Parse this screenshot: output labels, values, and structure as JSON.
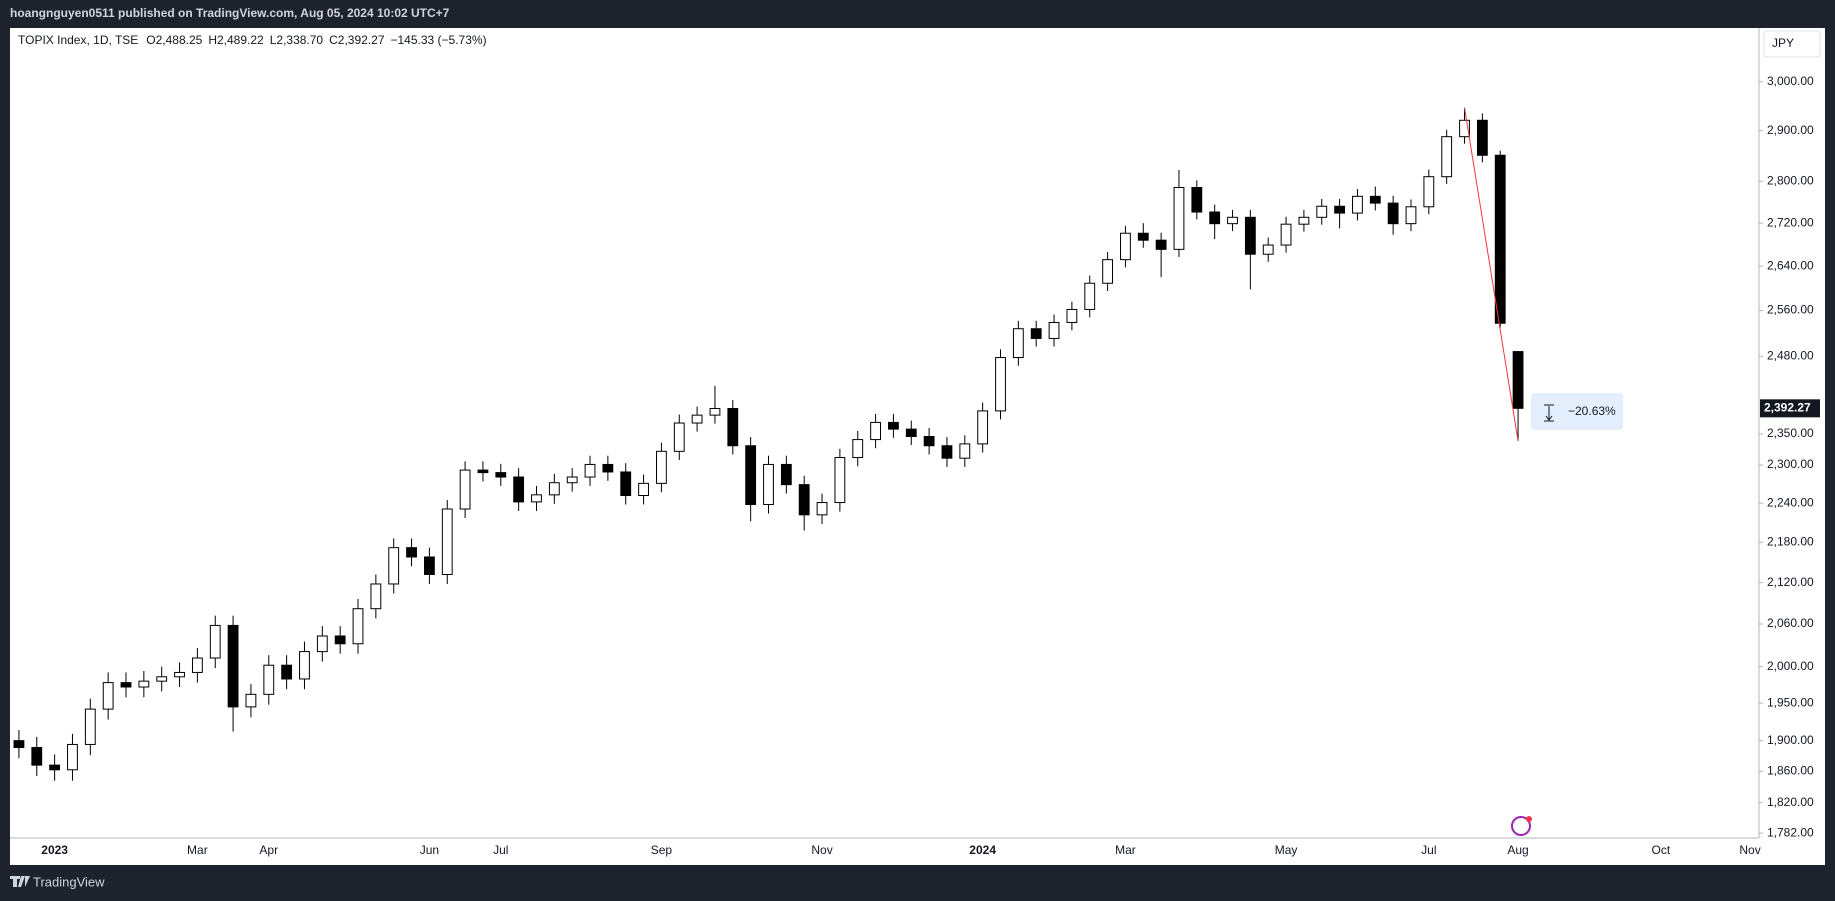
{
  "page": {
    "publisher": "hoangnguyen0511 published on TradingView.com, Aug 05, 2024 10:02 UTC+7",
    "brand": "TradingView"
  },
  "chart_data": {
    "type": "candlestick",
    "header": {
      "symbol": "TOPIX Index, 1D, TSE",
      "open": "O2,488.25",
      "high": "H2,489.22",
      "low": "L2,338.70",
      "close": "C2,392.27",
      "change": "−145.33 (−5.73%)"
    },
    "currency": "JPY",
    "categories": [
      null,
      null,
      "2023",
      null,
      null,
      null,
      null,
      null,
      null,
      null,
      "Mar",
      null,
      null,
      null,
      "Apr",
      null,
      null,
      null,
      null,
      null,
      null,
      null,
      null,
      "Jun",
      null,
      null,
      null,
      "Jul",
      null,
      null,
      null,
      null,
      null,
      null,
      null,
      null,
      "Sep",
      null,
      null,
      null,
      null,
      null,
      null,
      null,
      null,
      "Nov",
      null,
      null,
      null,
      null,
      null,
      null,
      null,
      null,
      "2024",
      null,
      null,
      null,
      null,
      null,
      null,
      null,
      "Mar",
      null,
      null,
      null,
      null,
      null,
      null,
      null,
      null,
      "May",
      null,
      null,
      null,
      null,
      null,
      null,
      null,
      "Jul",
      null,
      null,
      null,
      null,
      "Aug",
      null,
      null,
      null,
      null,
      null,
      null,
      null,
      "Oct",
      null,
      null,
      null,
      null,
      "Nov"
    ],
    "open": [
      1900,
      1891,
      1868,
      1862,
      1895,
      1942,
      1978,
      1972,
      1980,
      1986,
      1992,
      2012,
      2058,
      1945,
      1962,
      2002,
      1983,
      2021,
      2043,
      2032,
      2082,
      2118,
      2172,
      2158,
      2132,
      2231,
      2292,
      2288,
      2281,
      2242,
      2253,
      2272,
      2281,
      2301,
      2289,
      2252,
      2271,
      2322,
      2368,
      2381,
      2392,
      2331,
      2238,
      2301,
      2269,
      2222,
      2241,
      2312,
      2341,
      2369,
      2358,
      2346,
      2331,
      2311,
      2334,
      2388,
      2478,
      2528,
      2511,
      2539,
      2562,
      2609,
      2652,
      2701,
      2688,
      2671,
      2788,
      2741,
      2719,
      2731,
      2662,
      2679,
      2718,
      2731,
      2752,
      2739,
      2771,
      2758,
      2719,
      2751,
      2809,
      2888,
      2921,
      2851,
      2488.25,
      null,
      null,
      null,
      null,
      null,
      null,
      null,
      null,
      null,
      null,
      null,
      null,
      null
    ],
    "high": [
      1914,
      1905,
      1882,
      1909,
      1956,
      1992,
      1992,
      1994,
      2000,
      2006,
      2026,
      2072,
      2072,
      1976,
      2016,
      2016,
      2035,
      2057,
      2057,
      2096,
      2132,
      2186,
      2186,
      2172,
      2245,
      2306,
      2306,
      2302,
      2295,
      2267,
      2286,
      2295,
      2315,
      2315,
      2303,
      2285,
      2336,
      2382,
      2395,
      2430,
      2406,
      2345,
      2315,
      2315,
      2283,
      2255,
      2326,
      2355,
      2383,
      2383,
      2372,
      2360,
      2345,
      2348,
      2402,
      2492,
      2542,
      2542,
      2553,
      2576,
      2623,
      2666,
      2715,
      2720,
      2702,
      2822,
      2802,
      2755,
      2745,
      2745,
      2693,
      2732,
      2745,
      2766,
      2766,
      2785,
      2790,
      2772,
      2765,
      2823,
      2902,
      2946.6,
      2935,
      2860,
      2489.22,
      null,
      null,
      null,
      null,
      null,
      null,
      null,
      null,
      null,
      null,
      null,
      null,
      null
    ],
    "low": [
      1877,
      1854,
      1848,
      1848,
      1881,
      1928,
      1958,
      1958,
      1966,
      1972,
      1978,
      1998,
      1912,
      1931,
      1948,
      1969,
      1969,
      2007,
      2018,
      2018,
      2068,
      2104,
      2144,
      2118,
      2118,
      2217,
      2274,
      2267,
      2228,
      2228,
      2239,
      2258,
      2267,
      2275,
      2238,
      2238,
      2257,
      2308,
      2354,
      2367,
      2317,
      2212,
      2224,
      2255,
      2198,
      2208,
      2227,
      2298,
      2327,
      2344,
      2332,
      2317,
      2297,
      2297,
      2320,
      2374,
      2464,
      2497,
      2497,
      2525,
      2548,
      2595,
      2638,
      2674,
      2620,
      2657,
      2727,
      2690,
      2705,
      2598,
      2648,
      2665,
      2704,
      2717,
      2710,
      2725,
      2744,
      2698,
      2705,
      2737,
      2795,
      2874,
      2837,
      2530,
      2338.7,
      null,
      null,
      null,
      null,
      null,
      null,
      null,
      null,
      null,
      null,
      null,
      null,
      null
    ],
    "close": [
      1891,
      1868,
      1862,
      1895,
      1942,
      1978,
      1972,
      1980,
      1986,
      1992,
      2012,
      2058,
      1945,
      1962,
      2002,
      1983,
      2021,
      2043,
      2032,
      2082,
      2118,
      2172,
      2158,
      2132,
      2231,
      2292,
      2288,
      2281,
      2242,
      2253,
      2272,
      2281,
      2301,
      2289,
      2252,
      2271,
      2322,
      2368,
      2381,
      2392,
      2331,
      2238,
      2301,
      2269,
      2222,
      2241,
      2312,
      2341,
      2369,
      2358,
      2346,
      2331,
      2311,
      2334,
      2388,
      2478,
      2528,
      2511,
      2539,
      2562,
      2609,
      2652,
      2701,
      2688,
      2671,
      2788,
      2741,
      2719,
      2731,
      2662,
      2679,
      2718,
      2731,
      2752,
      2739,
      2771,
      2758,
      2719,
      2751,
      2809,
      2888,
      2921,
      2851,
      2537.6,
      2392.27,
      null,
      null,
      null,
      null,
      null,
      null,
      null,
      null,
      null,
      null,
      null,
      null,
      null
    ],
    "up_color": "#ffffff",
    "down_color": "#000000",
    "log_scale": true,
    "ylim": [
      1776,
      3114
    ],
    "yticks": [
      {
        "value": 3000,
        "label": "3,000.00"
      },
      {
        "value": 2900,
        "label": "2,900.00"
      },
      {
        "value": 2800,
        "label": "2,800.00"
      },
      {
        "value": 2720,
        "label": "2,720.00"
      },
      {
        "value": 2640,
        "label": "2,640.00"
      },
      {
        "value": 2560,
        "label": "2,560.00"
      },
      {
        "value": 2480,
        "label": "2,480.00"
      },
      {
        "value": 2350,
        "label": "2,350.00"
      },
      {
        "value": 2300,
        "label": "2,300.00"
      },
      {
        "value": 2240,
        "label": "2,240.00"
      },
      {
        "value": 2180,
        "label": "2,180.00"
      },
      {
        "value": 2120,
        "label": "2,120.00"
      },
      {
        "value": 2060,
        "label": "2,060.00"
      },
      {
        "value": 2000,
        "label": "2,000.00"
      },
      {
        "value": 1950,
        "label": "1,950.00"
      },
      {
        "value": 1900,
        "label": "1,900.00"
      },
      {
        "value": 1860,
        "label": "1,860.00"
      },
      {
        "value": 1820,
        "label": "1,820.00"
      },
      {
        "value": 1782,
        "label": "1,782.00"
      }
    ],
    "last_price": {
      "value": 2392.27,
      "label": "2,392.27"
    },
    "measure": {
      "from": 2946.6,
      "to": 2338.7,
      "label": "−20.63%",
      "color": "#f23645"
    }
  }
}
